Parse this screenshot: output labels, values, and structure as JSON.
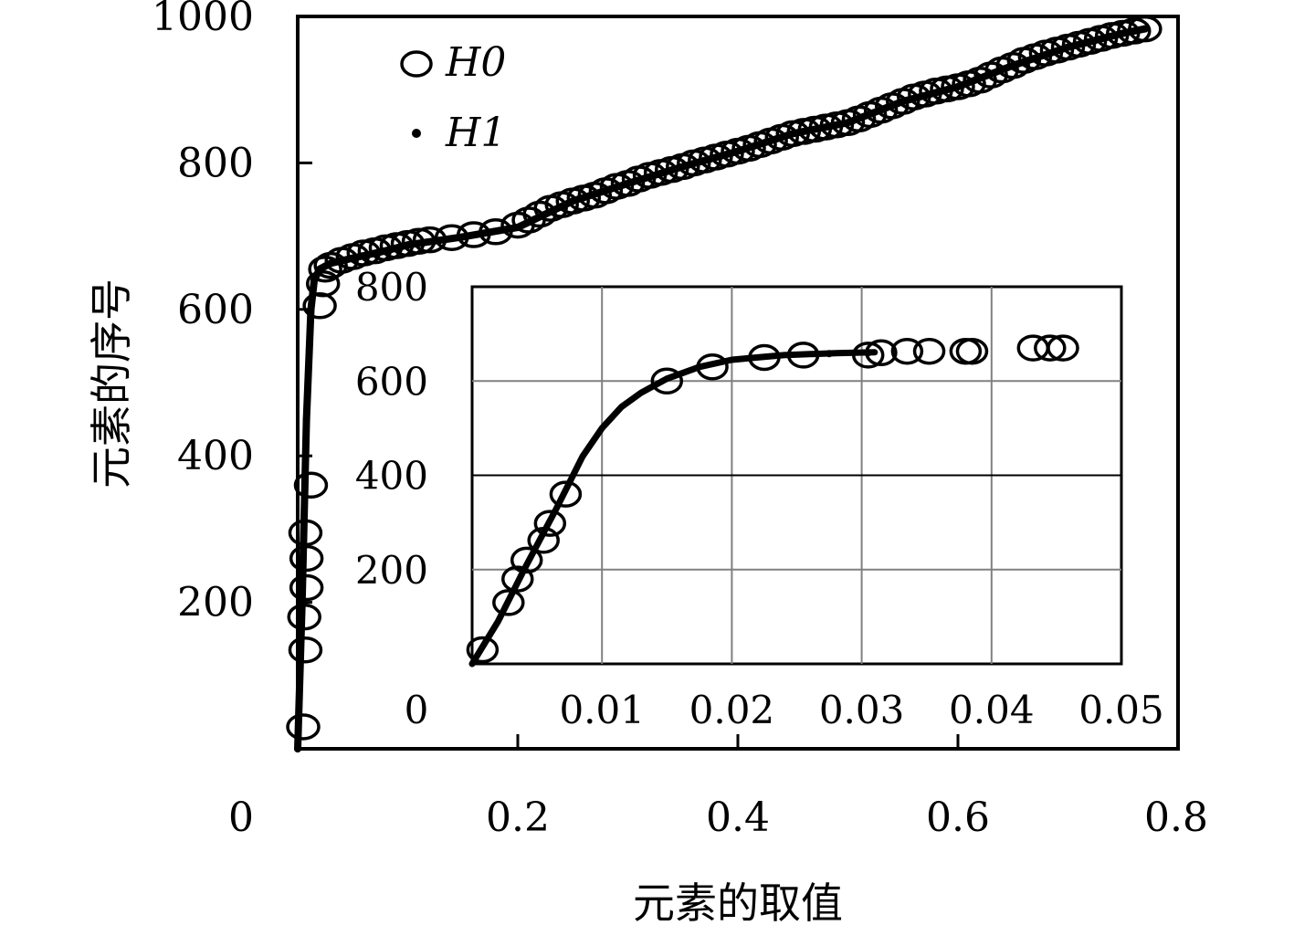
{
  "chart_data": [
    {
      "type": "scatter",
      "role": "main",
      "xlabel": "元素的取值",
      "ylabel": "元素的序号",
      "xlim": [
        0,
        0.8
      ],
      "ylim": [
        0,
        1000
      ],
      "xticks": [
        "0",
        "0.2",
        "0.4",
        "0.6",
        "0.8"
      ],
      "yticks": [
        "200",
        "400",
        "600",
        "800",
        "1000"
      ],
      "grid": false,
      "legend_position": "top-left",
      "series": [
        {
          "name": "H0",
          "marker": "open-circle",
          "points": [
            [
              0.005,
              30
            ],
            [
              0.007,
              135
            ],
            [
              0.006,
              180
            ],
            [
              0.008,
              220
            ],
            [
              0.008,
              260
            ],
            [
              0.007,
              295
            ],
            [
              0.012,
              360
            ],
            [
              0.02,
              605
            ],
            [
              0.023,
              635
            ],
            [
              0.025,
              655
            ],
            [
              0.03,
              660
            ],
            [
              0.04,
              667
            ],
            [
              0.05,
              672
            ],
            [
              0.06,
              677
            ],
            [
              0.07,
              680
            ],
            [
              0.08,
              684
            ],
            [
              0.09,
              687
            ],
            [
              0.1,
              690
            ],
            [
              0.11,
              693
            ],
            [
              0.12,
              695
            ],
            [
              0.14,
              698
            ],
            [
              0.16,
              702
            ],
            [
              0.18,
              706
            ],
            [
              0.2,
              715
            ],
            [
              0.21,
              722
            ],
            [
              0.22,
              730
            ],
            [
              0.23,
              738
            ],
            [
              0.24,
              743
            ],
            [
              0.25,
              748
            ],
            [
              0.26,
              752
            ],
            [
              0.27,
              756
            ],
            [
              0.28,
              762
            ],
            [
              0.29,
              768
            ],
            [
              0.3,
              772
            ],
            [
              0.31,
              778
            ],
            [
              0.32,
              783
            ],
            [
              0.33,
              787
            ],
            [
              0.34,
              791
            ],
            [
              0.35,
              795
            ],
            [
              0.36,
              800
            ],
            [
              0.37,
              804
            ],
            [
              0.38,
              808
            ],
            [
              0.39,
              812
            ],
            [
              0.4,
              816
            ],
            [
              0.41,
              820
            ],
            [
              0.42,
              825
            ],
            [
              0.43,
              830
            ],
            [
              0.44,
              835
            ],
            [
              0.45,
              840
            ],
            [
              0.46,
              843
            ],
            [
              0.47,
              846
            ],
            [
              0.48,
              849
            ],
            [
              0.49,
              852
            ],
            [
              0.5,
              855
            ],
            [
              0.51,
              860
            ],
            [
              0.52,
              866
            ],
            [
              0.53,
              872
            ],
            [
              0.54,
              878
            ],
            [
              0.55,
              884
            ],
            [
              0.56,
              890
            ],
            [
              0.57,
              894
            ],
            [
              0.58,
              898
            ],
            [
              0.59,
              901
            ],
            [
              0.6,
              904
            ],
            [
              0.61,
              908
            ],
            [
              0.62,
              913
            ],
            [
              0.63,
              920
            ],
            [
              0.64,
              927
            ],
            [
              0.65,
              933
            ],
            [
              0.66,
              940
            ],
            [
              0.67,
              945
            ],
            [
              0.68,
              950
            ],
            [
              0.69,
              954
            ],
            [
              0.7,
              958
            ],
            [
              0.71,
              962
            ],
            [
              0.72,
              966
            ],
            [
              0.73,
              970
            ],
            [
              0.74,
              974
            ],
            [
              0.75,
              977
            ],
            [
              0.76,
              980
            ],
            [
              0.77,
              983
            ]
          ]
        },
        {
          "name": "H1",
          "marker": "dot-line",
          "points": [
            [
              0.0,
              0
            ],
            [
              0.004,
              200
            ],
            [
              0.008,
              450
            ],
            [
              0.012,
              600
            ],
            [
              0.015,
              640
            ],
            [
              0.02,
              655
            ],
            [
              0.03,
              663
            ],
            [
              0.05,
              670
            ],
            [
              0.08,
              680
            ],
            [
              0.1,
              688
            ],
            [
              0.15,
              699
            ],
            [
              0.2,
              712
            ],
            [
              0.25,
              748
            ],
            [
              0.3,
              772
            ],
            [
              0.35,
              795
            ],
            [
              0.4,
              816
            ],
            [
              0.45,
              840
            ],
            [
              0.5,
              855
            ],
            [
              0.55,
              884
            ],
            [
              0.6,
              904
            ],
            [
              0.65,
              933
            ],
            [
              0.7,
              958
            ],
            [
              0.75,
              977
            ],
            [
              0.77,
              983
            ]
          ]
        }
      ]
    },
    {
      "type": "scatter",
      "role": "inset",
      "xlim": [
        0,
        0.05
      ],
      "ylim": [
        0,
        800
      ],
      "xticks": [
        "0",
        "0.01",
        "0.02",
        "0.03",
        "0.04",
        "0.05"
      ],
      "yticks": [
        "200",
        "400",
        "600",
        "800"
      ],
      "grid": true,
      "series": [
        {
          "name": "H0",
          "marker": "open-circle",
          "points": [
            [
              0.0008,
              30
            ],
            [
              0.0028,
              130
            ],
            [
              0.0035,
              180
            ],
            [
              0.0042,
              220
            ],
            [
              0.0055,
              262
            ],
            [
              0.006,
              298
            ],
            [
              0.0072,
              360
            ],
            [
              0.015,
              600
            ],
            [
              0.0185,
              630
            ],
            [
              0.0225,
              650
            ],
            [
              0.0255,
              655
            ],
            [
              0.0305,
              655
            ],
            [
              0.0315,
              660
            ],
            [
              0.0335,
              663
            ],
            [
              0.0352,
              663
            ],
            [
              0.038,
              663
            ],
            [
              0.0385,
              663
            ],
            [
              0.0432,
              670
            ],
            [
              0.0445,
              670
            ],
            [
              0.0455,
              670
            ]
          ]
        },
        {
          "name": "H1",
          "marker": "dot-line",
          "points": [
            [
              0.0,
              0
            ],
            [
              0.002,
              90
            ],
            [
              0.004,
              200
            ],
            [
              0.0065,
              330
            ],
            [
              0.0085,
              440
            ],
            [
              0.01,
              500
            ],
            [
              0.0115,
              545
            ],
            [
              0.013,
              575
            ],
            [
              0.015,
              605
            ],
            [
              0.0175,
              630
            ],
            [
              0.02,
              645
            ],
            [
              0.022,
              650
            ],
            [
              0.024,
              655
            ],
            [
              0.026,
              657
            ],
            [
              0.028,
              659
            ],
            [
              0.031,
              661
            ]
          ]
        }
      ]
    }
  ]
}
